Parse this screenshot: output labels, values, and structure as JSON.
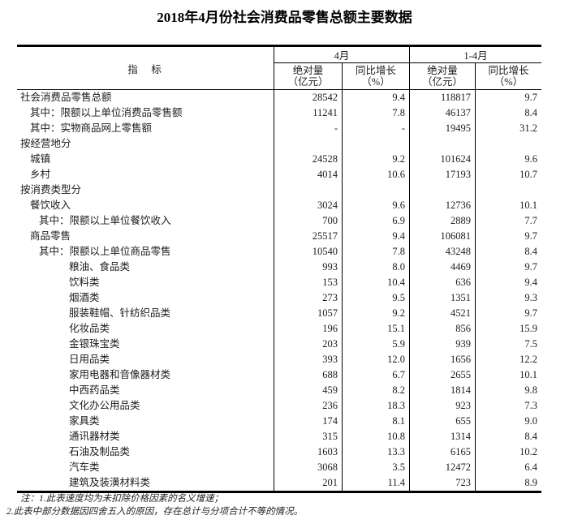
{
  "page": {
    "title": "2018年4月份社会消费品零售总额主要数据"
  },
  "table": {
    "indicator_header": "指　标",
    "period_headers": [
      "4月",
      "1-4月"
    ],
    "sub_headers": {
      "absolute_l1": "绝对量",
      "absolute_l2": "（亿元）",
      "growth_l1": "同比增长",
      "growth_l2": "（%）"
    },
    "rows": [
      {
        "label": "社会消费品零售总额",
        "indent": 0,
        "apr_abs": "28542",
        "apr_growth": "9.4",
        "cum_abs": "118817",
        "cum_growth": "9.7"
      },
      {
        "label": "其中：限额以上单位消费品零售额",
        "indent": 1,
        "apr_abs": "11241",
        "apr_growth": "7.8",
        "cum_abs": "46137",
        "cum_growth": "8.4"
      },
      {
        "label": "其中：实物商品网上零售额",
        "indent": 1,
        "apr_abs": "-",
        "apr_growth": "-",
        "cum_abs": "19495",
        "cum_growth": "31.2"
      },
      {
        "label": "按经营地分",
        "indent": 0,
        "apr_abs": "",
        "apr_growth": "",
        "cum_abs": "",
        "cum_growth": ""
      },
      {
        "label": "城镇",
        "indent": 1,
        "apr_abs": "24528",
        "apr_growth": "9.2",
        "cum_abs": "101624",
        "cum_growth": "9.6"
      },
      {
        "label": "乡村",
        "indent": 1,
        "apr_abs": "4014",
        "apr_growth": "10.6",
        "cum_abs": "17193",
        "cum_growth": "10.7"
      },
      {
        "label": "按消费类型分",
        "indent": 0,
        "apr_abs": "",
        "apr_growth": "",
        "cum_abs": "",
        "cum_growth": ""
      },
      {
        "label": "餐饮收入",
        "indent": 1,
        "apr_abs": "3024",
        "apr_growth": "9.6",
        "cum_abs": "12736",
        "cum_growth": "10.1"
      },
      {
        "label": "其中：限额以上单位餐饮收入",
        "indent": 2,
        "apr_abs": "700",
        "apr_growth": "6.9",
        "cum_abs": "2889",
        "cum_growth": "7.7"
      },
      {
        "label": "商品零售",
        "indent": 1,
        "apr_abs": "25517",
        "apr_growth": "9.4",
        "cum_abs": "106081",
        "cum_growth": "9.7"
      },
      {
        "label": "其中：限额以上单位商品零售",
        "indent": 2,
        "apr_abs": "10540",
        "apr_growth": "7.8",
        "cum_abs": "43248",
        "cum_growth": "8.4"
      },
      {
        "label": "粮油、食品类",
        "indent": 3,
        "apr_abs": "993",
        "apr_growth": "8.0",
        "cum_abs": "4469",
        "cum_growth": "9.7"
      },
      {
        "label": "饮料类",
        "indent": 3,
        "apr_abs": "153",
        "apr_growth": "10.4",
        "cum_abs": "636",
        "cum_growth": "9.4"
      },
      {
        "label": "烟酒类",
        "indent": 3,
        "apr_abs": "273",
        "apr_growth": "9.5",
        "cum_abs": "1351",
        "cum_growth": "9.3"
      },
      {
        "label": "服装鞋帽、针纺织品类",
        "indent": 3,
        "apr_abs": "1057",
        "apr_growth": "9.2",
        "cum_abs": "4521",
        "cum_growth": "9.7"
      },
      {
        "label": "化妆品类",
        "indent": 3,
        "apr_abs": "196",
        "apr_growth": "15.1",
        "cum_abs": "856",
        "cum_growth": "15.9"
      },
      {
        "label": "金银珠宝类",
        "indent": 3,
        "apr_abs": "203",
        "apr_growth": "5.9",
        "cum_abs": "939",
        "cum_growth": "7.5"
      },
      {
        "label": "日用品类",
        "indent": 3,
        "apr_abs": "393",
        "apr_growth": "12.0",
        "cum_abs": "1656",
        "cum_growth": "12.2"
      },
      {
        "label": "家用电器和音像器材类",
        "indent": 3,
        "apr_abs": "688",
        "apr_growth": "6.7",
        "cum_abs": "2655",
        "cum_growth": "10.1"
      },
      {
        "label": "中西药品类",
        "indent": 3,
        "apr_abs": "459",
        "apr_growth": "8.2",
        "cum_abs": "1814",
        "cum_growth": "9.8"
      },
      {
        "label": "文化办公用品类",
        "indent": 3,
        "apr_abs": "236",
        "apr_growth": "18.3",
        "cum_abs": "923",
        "cum_growth": "7.3"
      },
      {
        "label": "家具类",
        "indent": 3,
        "apr_abs": "174",
        "apr_growth": "8.1",
        "cum_abs": "655",
        "cum_growth": "9.0"
      },
      {
        "label": "通讯器材类",
        "indent": 3,
        "apr_abs": "315",
        "apr_growth": "10.8",
        "cum_abs": "1314",
        "cum_growth": "8.4"
      },
      {
        "label": "石油及制品类",
        "indent": 3,
        "apr_abs": "1603",
        "apr_growth": "13.3",
        "cum_abs": "6165",
        "cum_growth": "10.2"
      },
      {
        "label": "汽车类",
        "indent": 3,
        "apr_abs": "3068",
        "apr_growth": "3.5",
        "cum_abs": "12472",
        "cum_growth": "6.4"
      },
      {
        "label": "建筑及装潢材料类",
        "indent": 3,
        "apr_abs": "201",
        "apr_growth": "11.4",
        "cum_abs": "723",
        "cum_growth": "8.9"
      }
    ]
  },
  "notes": {
    "line1": "注：1.此表速度均为未扣除价格因素的名义增速；",
    "line2": "2.此表中部分数据因四舍五入的原因，存在总计与分项合计不等的情况。"
  }
}
